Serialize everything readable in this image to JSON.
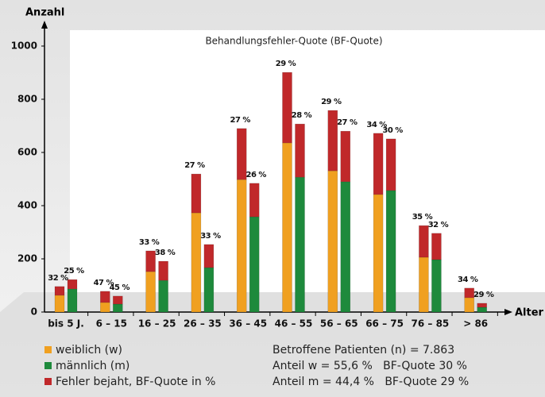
{
  "chart_data": {
    "type": "bar",
    "title": "Behandlungsfehler-Quote (BF-Quote)",
    "y_label": "Anzahl",
    "x_label": "Alter",
    "categories": [
      "bis 5 J.",
      "6 – 15",
      "16 – 25",
      "26 – 35",
      "36 – 45",
      "46 – 55",
      "56 – 65",
      "66 – 75",
      "76 – 85",
      "> 86"
    ],
    "series": [
      {
        "name": "weiblich (w)",
        "color": "#f0a020",
        "values": [
          63,
          36,
          152,
          373,
          498,
          636,
          531,
          442,
          206,
          54
        ]
      },
      {
        "name": "männlich (m)",
        "color": "#1e8a3c",
        "values": [
          87,
          30,
          119,
          167,
          358,
          507,
          490,
          457,
          197,
          18
        ]
      },
      {
        "name": "Fehler bejaht, BF-Quote in %",
        "color": "#c0282a",
        "values_w": [
          33,
          42,
          78,
          146,
          192,
          265,
          227,
          230,
          119,
          36
        ],
        "values_m": [
          35,
          30,
          72,
          87,
          126,
          200,
          190,
          194,
          99,
          15
        ]
      }
    ],
    "bf_quote_w": [
      "32 %",
      "47 %",
      "33 %",
      "27 %",
      "27 %",
      "29 %",
      "29 %",
      "34 %",
      "35 %",
      "34 %"
    ],
    "bf_quote_m": [
      "25 %",
      "45 %",
      "38 %",
      "33 %",
      "26 %",
      "28 %",
      "27 %",
      "30 %",
      "32 %",
      "29 %"
    ],
    "ylim": [
      0,
      1000
    ],
    "yticks": [
      0,
      200,
      400,
      600,
      800,
      1000
    ],
    "grid": false,
    "summary": [
      "Betroffene Patienten (n) = 7.863",
      "Anteil w = 55,6 %   BF-Quote 30 %",
      "Anteil m = 44,4 %   BF-Quote 29 %"
    ]
  }
}
